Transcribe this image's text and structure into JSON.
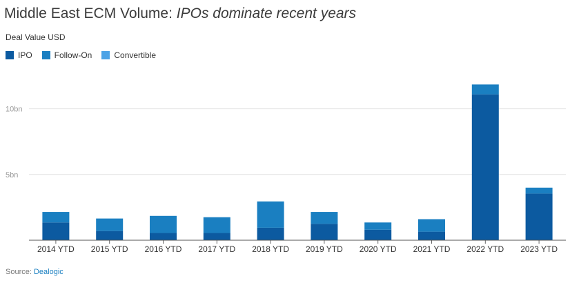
{
  "header": {
    "title_main": "Middle East ECM Volume: ",
    "title_emphasis": "IPOs dominate recent years",
    "subtitle": "Deal Value USD"
  },
  "legend": [
    {
      "label": "IPO",
      "color": "#0c5aa0"
    },
    {
      "label": "Follow-On",
      "color": "#1a7fc1"
    },
    {
      "label": "Convertible",
      "color": "#4da3e6"
    }
  ],
  "footer": {
    "source_label": "Source: ",
    "source_name": "Dealogic"
  },
  "chart_data": {
    "type": "bar",
    "stacked": true,
    "title": "Middle East ECM Volume: IPOs dominate recent years",
    "ylabel": "Deal Value USD",
    "xlabel": "",
    "ylim": [
      0,
      12.5
    ],
    "yticks": [
      {
        "value": 5,
        "label": "5bn"
      },
      {
        "value": 10,
        "label": "10bn"
      }
    ],
    "gridlines": true,
    "legend_position": "top-left",
    "categories": [
      "2014 YTD",
      "2015 YTD",
      "2016 YTD",
      "2017 YTD",
      "2018 YTD",
      "2019 YTD",
      "2020 YTD",
      "2021 YTD",
      "2022 YTD",
      "2023 YTD"
    ],
    "series": [
      {
        "name": "IPO",
        "color": "#0c5aa0",
        "values": [
          1.35,
          0.7,
          0.55,
          0.55,
          0.95,
          1.25,
          0.8,
          0.65,
          11.1,
          3.55
        ]
      },
      {
        "name": "Follow-On",
        "color": "#1a7fc1",
        "values": [
          0.8,
          0.95,
          1.3,
          1.2,
          2.0,
          0.9,
          0.55,
          0.95,
          0.75,
          0.45
        ]
      },
      {
        "name": "Convertible",
        "color": "#4da3e6",
        "values": [
          0,
          0,
          0,
          0,
          0,
          0,
          0,
          0,
          0,
          0
        ]
      }
    ]
  }
}
